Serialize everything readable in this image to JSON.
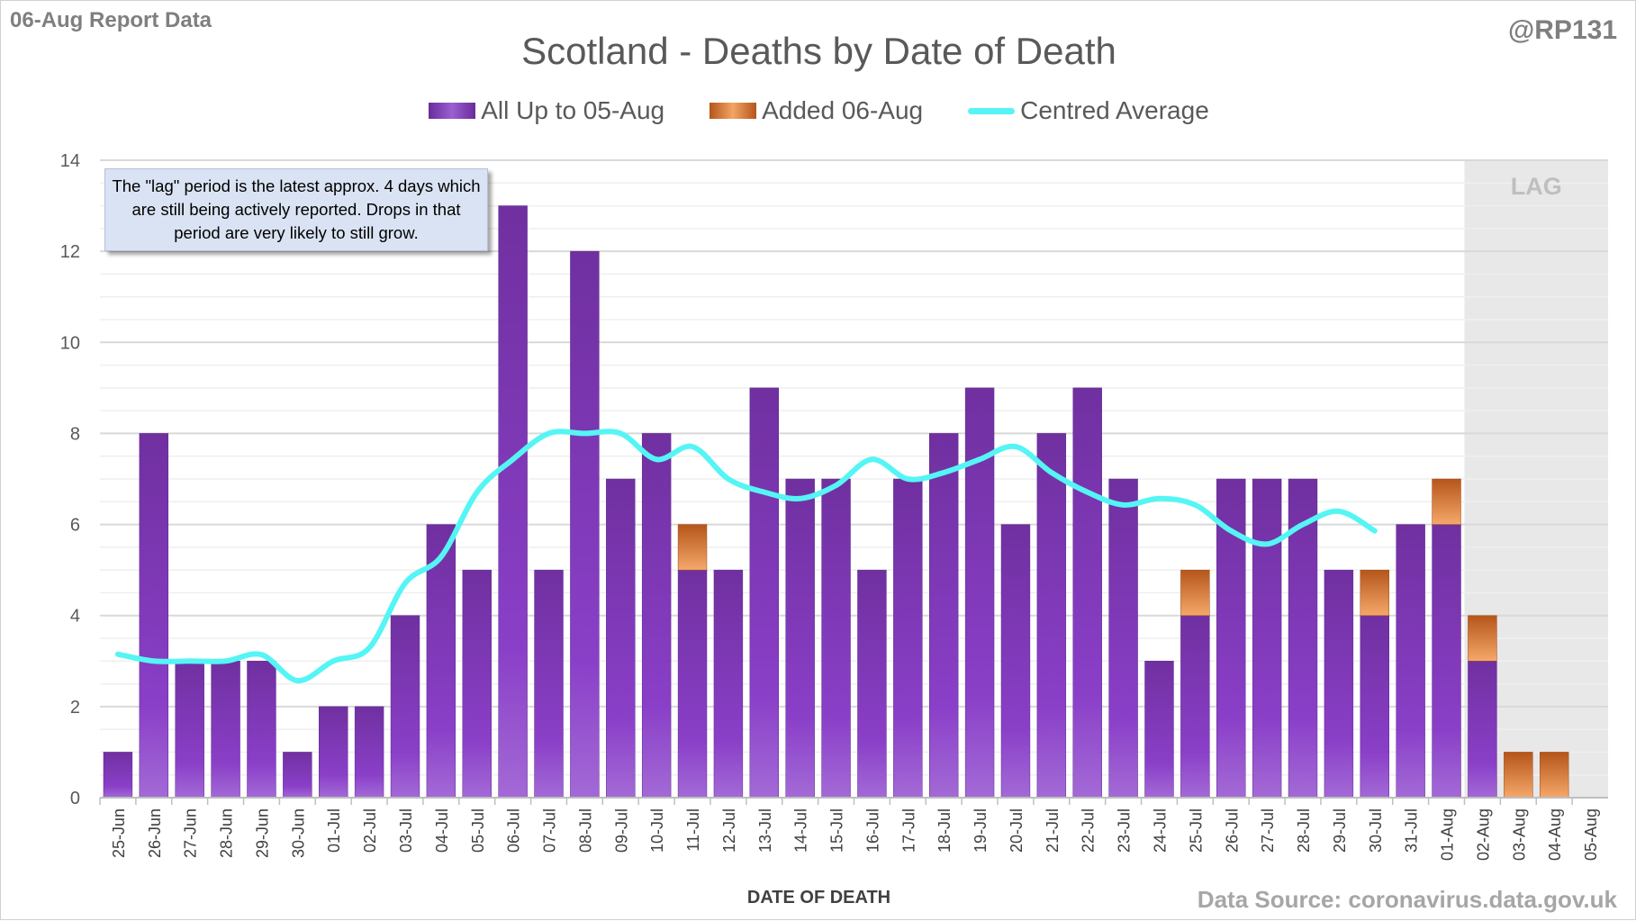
{
  "header": {
    "report_label": "06-Aug Report Data",
    "handle": "@RP131",
    "source": "Data Source: coronavirus.data.gov.uk"
  },
  "annotation": "The \"lag\" period is the latest approx. 4 days which are still being actively reported.  Drops in that period are very likely to still grow.",
  "colors": {
    "all": "#7030a0",
    "added": "#d9762b",
    "average": "#55f5f5",
    "lag_band": "#e8e8e8"
  },
  "chart_data": {
    "type": "bar",
    "stacked": true,
    "title": "Scotland - Deaths by Date of Death",
    "xlabel": "DATE OF DEATH",
    "ylabel": "",
    "ylim": [
      0,
      14
    ],
    "yticks": [
      0,
      2,
      4,
      6,
      8,
      10,
      12,
      14
    ],
    "grid": true,
    "legend_position": "top",
    "lag_label": "LAG",
    "lag_start": "02-Aug",
    "categories": [
      "25-Jun",
      "26-Jun",
      "27-Jun",
      "28-Jun",
      "29-Jun",
      "30-Jun",
      "01-Jul",
      "02-Jul",
      "03-Jul",
      "04-Jul",
      "05-Jul",
      "06-Jul",
      "07-Jul",
      "08-Jul",
      "09-Jul",
      "10-Jul",
      "11-Jul",
      "12-Jul",
      "13-Jul",
      "14-Jul",
      "15-Jul",
      "16-Jul",
      "17-Jul",
      "18-Jul",
      "19-Jul",
      "20-Jul",
      "21-Jul",
      "22-Jul",
      "23-Jul",
      "24-Jul",
      "25-Jul",
      "26-Jul",
      "27-Jul",
      "28-Jul",
      "29-Jul",
      "30-Jul",
      "31-Jul",
      "01-Aug",
      "02-Aug",
      "03-Aug",
      "04-Aug",
      "05-Aug"
    ],
    "series": [
      {
        "name": "All Up to 05-Aug",
        "type": "bar",
        "values": [
          1,
          8,
          3,
          3,
          3,
          1,
          2,
          2,
          4,
          6,
          5,
          13,
          5,
          12,
          7,
          8,
          5,
          5,
          9,
          7,
          7,
          5,
          7,
          8,
          9,
          6,
          8,
          9,
          7,
          3,
          4,
          7,
          7,
          7,
          5,
          4,
          6,
          6,
          3,
          0,
          0,
          0
        ]
      },
      {
        "name": "Added 06-Aug",
        "type": "bar",
        "values": [
          0,
          0,
          0,
          0,
          0,
          0,
          0,
          0,
          0,
          0,
          0,
          0,
          0,
          0,
          0,
          0,
          1,
          0,
          0,
          0,
          0,
          0,
          0,
          0,
          0,
          0,
          0,
          0,
          0,
          0,
          1,
          0,
          0,
          0,
          0,
          1,
          0,
          1,
          1,
          1,
          1,
          0
        ]
      },
      {
        "name": "Centred Average",
        "type": "line",
        "values": [
          3.15,
          3.0,
          3.0,
          3.0,
          3.14,
          2.57,
          3.0,
          3.29,
          4.71,
          5.29,
          6.71,
          7.43,
          8.0,
          8.0,
          8.0,
          7.43,
          7.71,
          7.0,
          6.71,
          6.57,
          6.86,
          7.43,
          7.0,
          7.14,
          7.43,
          7.71,
          7.14,
          6.71,
          6.43,
          6.57,
          6.43,
          5.86,
          5.57,
          6.0,
          6.29,
          5.86,
          null,
          null,
          null,
          null,
          null,
          null
        ]
      }
    ]
  }
}
